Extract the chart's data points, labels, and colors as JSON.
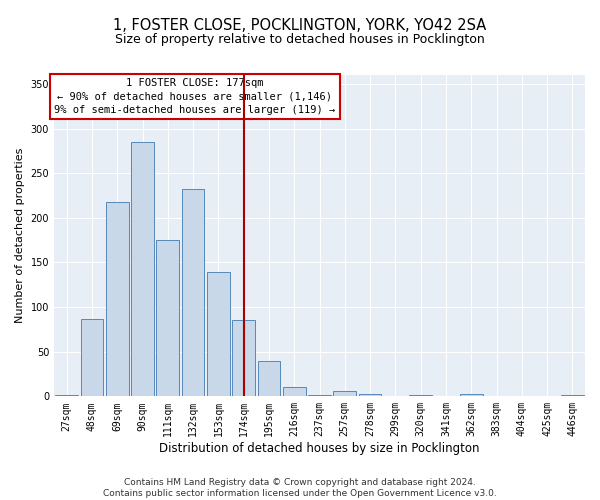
{
  "title": "1, FOSTER CLOSE, POCKLINGTON, YORK, YO42 2SA",
  "subtitle": "Size of property relative to detached houses in Pocklington",
  "xlabel": "Distribution of detached houses by size in Pocklington",
  "ylabel": "Number of detached properties",
  "bar_color": "#c8d8e8",
  "bar_edge_color": "#5588bb",
  "background_color": "#e8eef5",
  "grid_color": "#ffffff",
  "categories": [
    "27sqm",
    "48sqm",
    "69sqm",
    "90sqm",
    "111sqm",
    "132sqm",
    "153sqm",
    "174sqm",
    "195sqm",
    "216sqm",
    "237sqm",
    "257sqm",
    "278sqm",
    "299sqm",
    "320sqm",
    "341sqm",
    "362sqm",
    "383sqm",
    "404sqm",
    "425sqm",
    "446sqm"
  ],
  "values": [
    2,
    87,
    218,
    285,
    175,
    232,
    139,
    86,
    40,
    10,
    2,
    6,
    3,
    0,
    1,
    0,
    3,
    0,
    0,
    0,
    2
  ],
  "vline_color": "#aa0000",
  "annotation_line1": "1 FOSTER CLOSE: 177sqm",
  "annotation_line2": "← 90% of detached houses are smaller (1,146)",
  "annotation_line3": "9% of semi-detached houses are larger (119) →",
  "annotation_box_color": "#cc0000",
  "ylim": [
    0,
    360
  ],
  "yticks": [
    0,
    50,
    100,
    150,
    200,
    250,
    300,
    350
  ],
  "footer": "Contains HM Land Registry data © Crown copyright and database right 2024.\nContains public sector information licensed under the Open Government Licence v3.0.",
  "title_fontsize": 10.5,
  "subtitle_fontsize": 9,
  "xlabel_fontsize": 8.5,
  "ylabel_fontsize": 8,
  "tick_fontsize": 7,
  "footer_fontsize": 6.5,
  "annotation_fontsize": 7.5
}
